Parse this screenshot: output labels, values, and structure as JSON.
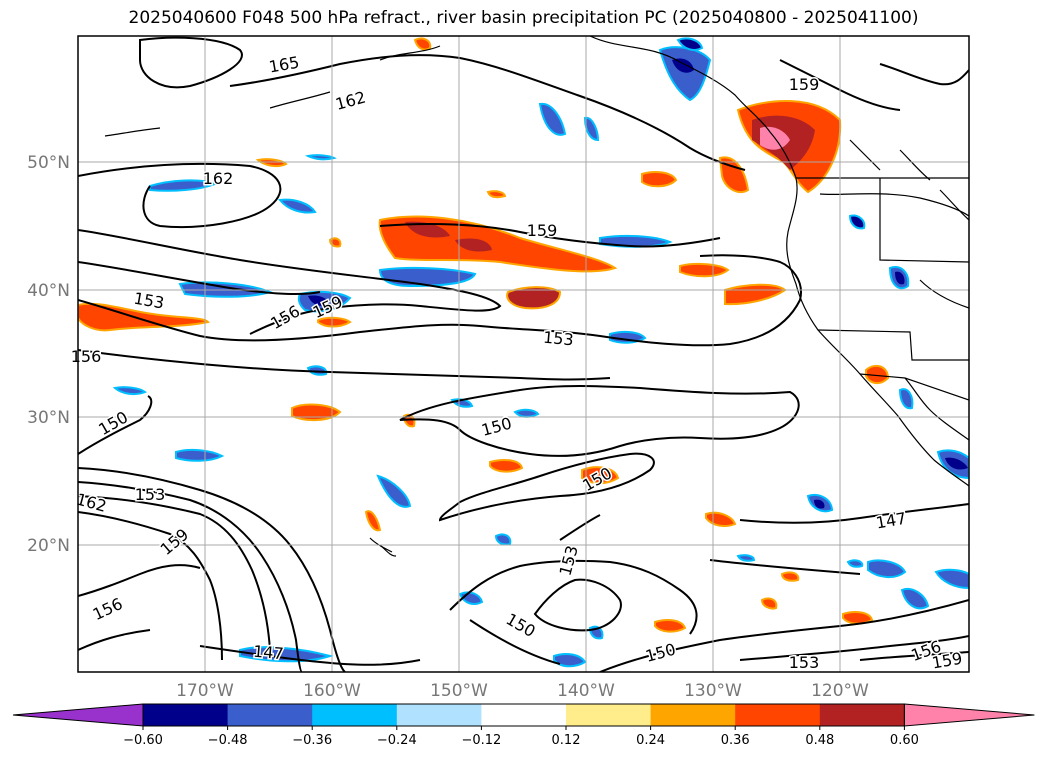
{
  "title": "2025040600 F048 500 hPa refract., river basin precipitation PC (2025040800 - 2025041100)",
  "axes": {
    "lat_labels": [
      "50°N",
      "40°N",
      "30°N",
      "20°N"
    ],
    "lon_labels": [
      "170°W",
      "160°W",
      "150°W",
      "140°W",
      "130°W",
      "120°W"
    ]
  },
  "colorbar": {
    "colors": [
      "#9932CC",
      "#00008B",
      "#3A5FCD",
      "#00BFFF",
      "#B0E2FF",
      "#FFFFFF",
      "#FFEC8B",
      "#FFA500",
      "#FF4500",
      "#B22222",
      "#FF82AB"
    ],
    "tick_labels": [
      "−0.60",
      "−0.48",
      "−0.36",
      "−0.24",
      "−0.12",
      "0.12",
      "0.24",
      "0.36",
      "0.48",
      "0.60"
    ]
  },
  "contour_labels": [
    "165",
    "162",
    "162",
    "159",
    "159",
    "156",
    "159",
    "153",
    "153",
    "150",
    "150",
    "150",
    "150",
    "162",
    "153",
    "159",
    "156",
    "147",
    "153",
    "150",
    "147",
    "153",
    "156",
    "159",
    "156"
  ]
}
